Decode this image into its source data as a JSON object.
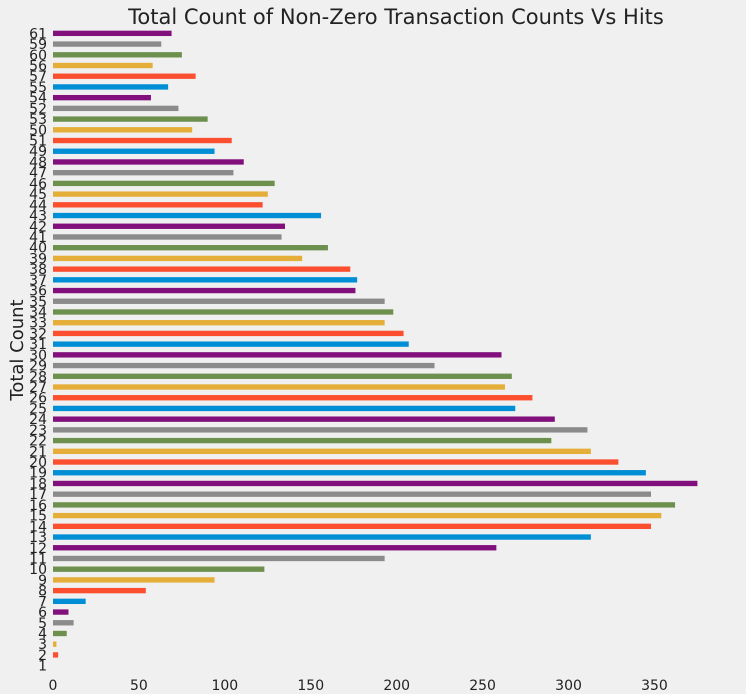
{
  "chart_data": {
    "type": "bar",
    "orientation": "horizontal",
    "title": "Total Count of Non-Zero Transaction Counts Vs Hits",
    "xlabel": "",
    "ylabel": "Total Count",
    "xlim": [
      0,
      380
    ],
    "x_ticks": [
      0,
      50,
      100,
      150,
      200,
      250,
      300,
      350
    ],
    "grid": false,
    "legend": "none",
    "categories": [
      "1",
      "2",
      "3",
      "4",
      "5",
      "6",
      "7",
      "8",
      "9",
      "10",
      "11",
      "12",
      "13",
      "14",
      "15",
      "16",
      "17",
      "18",
      "19",
      "20",
      "21",
      "22",
      "23",
      "24",
      "25",
      "26",
      "27",
      "28",
      "29",
      "30",
      "31",
      "32",
      "33",
      "34",
      "35",
      "36",
      "37",
      "38",
      "39",
      "40",
      "41",
      "42",
      "43",
      "44",
      "45",
      "46",
      "47",
      "48",
      "49",
      "51",
      "50",
      "53",
      "52",
      "54",
      "55",
      "57",
      "56",
      "60",
      "59",
      "61"
    ],
    "values": [
      0,
      3,
      2,
      8,
      12,
      9,
      19,
      54,
      94,
      123,
      193,
      258,
      313,
      348,
      354,
      362,
      348,
      375,
      345,
      329,
      313,
      290,
      311,
      292,
      269,
      279,
      263,
      267,
      222,
      261,
      207,
      204,
      193,
      198,
      193,
      176,
      177,
      173,
      145,
      160,
      133,
      135,
      156,
      122,
      125,
      129,
      105,
      111,
      94,
      104,
      81,
      90,
      73,
      57,
      67,
      83,
      58,
      75,
      63,
      69
    ],
    "bar_colors": [
      "#008fd5",
      "#fc4f30",
      "#e5ae38",
      "#6d904f",
      "#8b8b8b",
      "#810f7c"
    ]
  }
}
